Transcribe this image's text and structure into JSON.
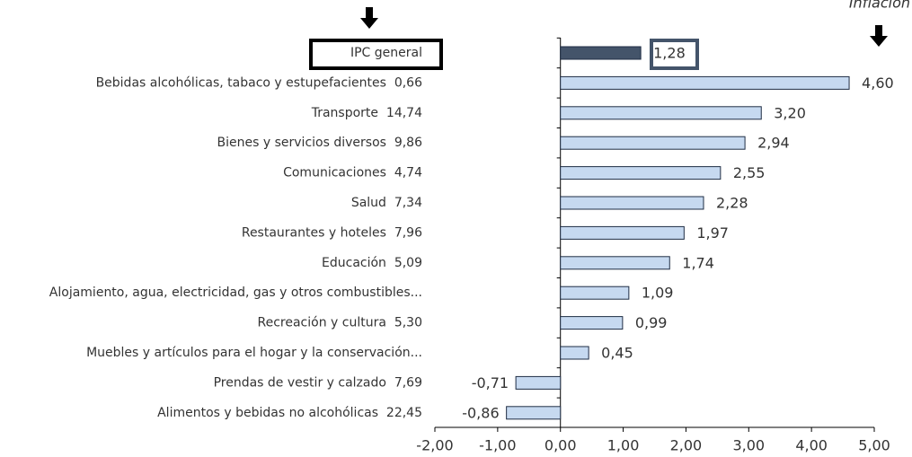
{
  "chart_data": {
    "type": "hbar",
    "annotation": "Inflación",
    "categories": [
      "IPC general",
      "Bebidas alcohólicas, tabaco y estupefacientes  0,66",
      "Transporte  14,74",
      "Bienes y servicios diversos  9,86",
      "Comunicaciones  4,74",
      "Salud  7,34",
      "Restaurantes y hoteles  7,96",
      "Educación  5,09",
      "Alojamiento, agua, electricidad, gas y otros combustibles...",
      "Recreación y cultura  5,30",
      "Muebles y artículos para el hogar y la conservación...",
      "Prendas de vestir y calzado  7,69",
      "Alimentos y bebidas no alcohólicas  22,45"
    ],
    "values": [
      1.28,
      4.6,
      3.2,
      2.94,
      2.55,
      2.28,
      1.97,
      1.74,
      1.09,
      0.99,
      0.45,
      -0.71,
      -0.86
    ],
    "value_labels": [
      "1,28",
      "4,60",
      "3,20",
      "2,94",
      "2,55",
      "2,28",
      "1,97",
      "1,74",
      "1,09",
      "0,99",
      "0,45",
      "-0,71",
      "-0,86"
    ],
    "colors": [
      "#44546a",
      "#c6d9f0",
      "#c6d9f0",
      "#c6d9f0",
      "#c6d9f0",
      "#c6d9f0",
      "#c6d9f0",
      "#c6d9f0",
      "#c6d9f0",
      "#c6d9f0",
      "#c6d9f0",
      "#c6d9f0",
      "#c6d9f0"
    ],
    "xlim": [
      -2,
      5
    ],
    "xticks": [
      {
        "value": -2,
        "label": "-2,00"
      },
      {
        "value": -1,
        "label": "-1,00"
      },
      {
        "value": 0,
        "label": "0,00"
      },
      {
        "value": 1,
        "label": "1,00"
      },
      {
        "value": 2,
        "label": "2,00"
      },
      {
        "value": 3,
        "label": "3,00"
      },
      {
        "value": 4,
        "label": "4,00"
      },
      {
        "value": 5,
        "label": "5,00"
      }
    ],
    "grid": false
  }
}
